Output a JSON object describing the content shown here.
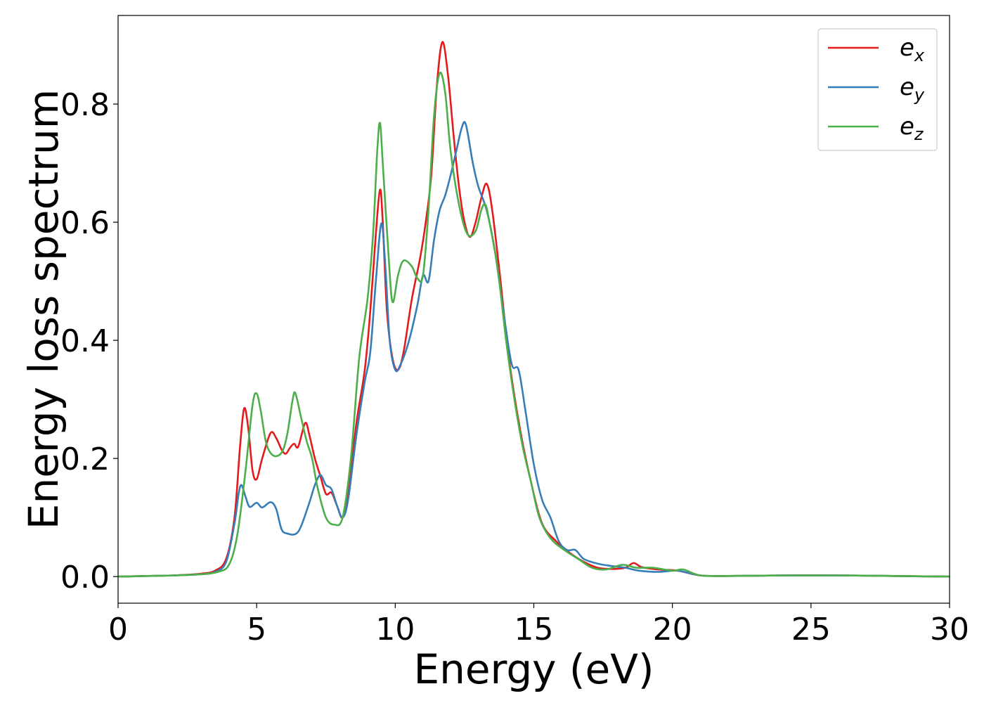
{
  "chart_data": {
    "type": "line",
    "xlabel": "Energy (eV)",
    "ylabel": "Energy loss spectrum",
    "xlim": [
      0,
      30
    ],
    "ylim": [
      -0.045,
      0.95
    ],
    "xticks": [
      0,
      5,
      10,
      15,
      20,
      25,
      30
    ],
    "xtick_labels": [
      "0",
      "5",
      "10",
      "15",
      "20",
      "25",
      "30"
    ],
    "yticks": [
      0.0,
      0.2,
      0.4,
      0.6,
      0.8
    ],
    "ytick_labels": [
      "0.0",
      "0.2",
      "0.4",
      "0.6",
      "0.8"
    ],
    "grid": false,
    "legend_position": "top-right",
    "series": [
      {
        "name": "e_x",
        "legend_main": "e",
        "legend_sub": "x",
        "color": "#e41a1c",
        "points": [
          [
            0,
            0
          ],
          [
            1,
            0.001
          ],
          [
            2,
            0.002
          ],
          [
            3,
            0.005
          ],
          [
            3.5,
            0.01
          ],
          [
            3.9,
            0.03
          ],
          [
            4.2,
            0.1
          ],
          [
            4.4,
            0.22
          ],
          [
            4.55,
            0.285
          ],
          [
            4.7,
            0.25
          ],
          [
            4.85,
            0.18
          ],
          [
            5.0,
            0.165
          ],
          [
            5.2,
            0.2
          ],
          [
            5.5,
            0.243
          ],
          [
            5.7,
            0.235
          ],
          [
            5.9,
            0.215
          ],
          [
            6.05,
            0.208
          ],
          [
            6.2,
            0.218
          ],
          [
            6.35,
            0.225
          ],
          [
            6.5,
            0.22
          ],
          [
            6.75,
            0.26
          ],
          [
            6.9,
            0.24
          ],
          [
            7.1,
            0.2
          ],
          [
            7.3,
            0.17
          ],
          [
            7.5,
            0.14
          ],
          [
            7.7,
            0.142
          ],
          [
            7.9,
            0.12
          ],
          [
            8.1,
            0.1
          ],
          [
            8.3,
            0.14
          ],
          [
            8.6,
            0.26
          ],
          [
            8.9,
            0.35
          ],
          [
            9.1,
            0.45
          ],
          [
            9.3,
            0.58
          ],
          [
            9.45,
            0.655
          ],
          [
            9.55,
            0.6
          ],
          [
            9.7,
            0.45
          ],
          [
            9.9,
            0.37
          ],
          [
            10.1,
            0.35
          ],
          [
            10.3,
            0.38
          ],
          [
            10.6,
            0.47
          ],
          [
            10.9,
            0.54
          ],
          [
            11.1,
            0.6
          ],
          [
            11.3,
            0.68
          ],
          [
            11.5,
            0.83
          ],
          [
            11.7,
            0.905
          ],
          [
            11.9,
            0.85
          ],
          [
            12.1,
            0.75
          ],
          [
            12.3,
            0.66
          ],
          [
            12.5,
            0.6
          ],
          [
            12.7,
            0.575
          ],
          [
            12.9,
            0.6
          ],
          [
            13.1,
            0.64
          ],
          [
            13.3,
            0.665
          ],
          [
            13.5,
            0.62
          ],
          [
            13.8,
            0.5
          ],
          [
            14.1,
            0.37
          ],
          [
            14.5,
            0.25
          ],
          [
            14.9,
            0.16
          ],
          [
            15.3,
            0.09
          ],
          [
            15.8,
            0.06
          ],
          [
            16.3,
            0.04
          ],
          [
            16.8,
            0.025
          ],
          [
            17.3,
            0.015
          ],
          [
            17.8,
            0.013
          ],
          [
            18.3,
            0.015
          ],
          [
            18.6,
            0.023
          ],
          [
            18.9,
            0.016
          ],
          [
            19.5,
            0.012
          ],
          [
            20.2,
            0.01
          ],
          [
            21,
            0.002
          ],
          [
            22,
            0.001
          ],
          [
            24,
            0.002
          ],
          [
            26,
            0.002
          ],
          [
            28,
            0.001
          ],
          [
            30,
            0.0
          ]
        ]
      },
      {
        "name": "e_y",
        "legend_main": "e",
        "legend_sub": "y",
        "color": "#377eb8",
        "points": [
          [
            0,
            0
          ],
          [
            1,
            0.001
          ],
          [
            2,
            0.002
          ],
          [
            3,
            0.004
          ],
          [
            3.5,
            0.008
          ],
          [
            3.9,
            0.025
          ],
          [
            4.2,
            0.09
          ],
          [
            4.35,
            0.14
          ],
          [
            4.45,
            0.155
          ],
          [
            4.6,
            0.135
          ],
          [
            4.75,
            0.118
          ],
          [
            5.0,
            0.125
          ],
          [
            5.2,
            0.117
          ],
          [
            5.5,
            0.126
          ],
          [
            5.7,
            0.115
          ],
          [
            5.9,
            0.08
          ],
          [
            6.1,
            0.073
          ],
          [
            6.4,
            0.072
          ],
          [
            6.6,
            0.085
          ],
          [
            6.9,
            0.125
          ],
          [
            7.1,
            0.155
          ],
          [
            7.3,
            0.172
          ],
          [
            7.5,
            0.155
          ],
          [
            7.7,
            0.148
          ],
          [
            7.9,
            0.12
          ],
          [
            8.1,
            0.1
          ],
          [
            8.3,
            0.13
          ],
          [
            8.6,
            0.24
          ],
          [
            8.9,
            0.33
          ],
          [
            9.1,
            0.38
          ],
          [
            9.3,
            0.5
          ],
          [
            9.5,
            0.598
          ],
          [
            9.65,
            0.52
          ],
          [
            9.8,
            0.4
          ],
          [
            10.0,
            0.35
          ],
          [
            10.2,
            0.36
          ],
          [
            10.5,
            0.4
          ],
          [
            10.8,
            0.46
          ],
          [
            11.0,
            0.51
          ],
          [
            11.2,
            0.5
          ],
          [
            11.4,
            0.57
          ],
          [
            11.6,
            0.62
          ],
          [
            11.8,
            0.645
          ],
          [
            12.0,
            0.68
          ],
          [
            12.2,
            0.72
          ],
          [
            12.4,
            0.76
          ],
          [
            12.55,
            0.765
          ],
          [
            12.8,
            0.7
          ],
          [
            13.0,
            0.66
          ],
          [
            13.3,
            0.62
          ],
          [
            13.6,
            0.55
          ],
          [
            13.9,
            0.45
          ],
          [
            14.2,
            0.36
          ],
          [
            14.45,
            0.35
          ],
          [
            14.7,
            0.28
          ],
          [
            15.0,
            0.19
          ],
          [
            15.3,
            0.13
          ],
          [
            15.6,
            0.1
          ],
          [
            15.9,
            0.06
          ],
          [
            16.2,
            0.045
          ],
          [
            16.5,
            0.045
          ],
          [
            16.8,
            0.03
          ],
          [
            17.3,
            0.022
          ],
          [
            17.8,
            0.018
          ],
          [
            18.3,
            0.015
          ],
          [
            18.8,
            0.01
          ],
          [
            19.5,
            0.008
          ],
          [
            20.2,
            0.01
          ],
          [
            21,
            0.002
          ],
          [
            22,
            0.001
          ],
          [
            24,
            0.002
          ],
          [
            26,
            0.002
          ],
          [
            28,
            0.001
          ],
          [
            30,
            0.0
          ]
        ]
      },
      {
        "name": "e_z",
        "legend_main": "e",
        "legend_sub": "z",
        "color": "#4daf4a",
        "points": [
          [
            0,
            0
          ],
          [
            1,
            0.001
          ],
          [
            2,
            0.002
          ],
          [
            3,
            0.004
          ],
          [
            3.6,
            0.008
          ],
          [
            4.0,
            0.02
          ],
          [
            4.3,
            0.07
          ],
          [
            4.6,
            0.18
          ],
          [
            4.85,
            0.29
          ],
          [
            5.0,
            0.31
          ],
          [
            5.15,
            0.28
          ],
          [
            5.35,
            0.225
          ],
          [
            5.6,
            0.205
          ],
          [
            5.9,
            0.21
          ],
          [
            6.1,
            0.24
          ],
          [
            6.3,
            0.3
          ],
          [
            6.4,
            0.31
          ],
          [
            6.6,
            0.27
          ],
          [
            6.8,
            0.23
          ],
          [
            7.0,
            0.2
          ],
          [
            7.2,
            0.15
          ],
          [
            7.5,
            0.1
          ],
          [
            7.8,
            0.088
          ],
          [
            8.1,
            0.1
          ],
          [
            8.4,
            0.2
          ],
          [
            8.7,
            0.37
          ],
          [
            9.0,
            0.47
          ],
          [
            9.2,
            0.58
          ],
          [
            9.35,
            0.72
          ],
          [
            9.45,
            0.768
          ],
          [
            9.55,
            0.7
          ],
          [
            9.75,
            0.55
          ],
          [
            9.9,
            0.465
          ],
          [
            10.1,
            0.51
          ],
          [
            10.3,
            0.535
          ],
          [
            10.6,
            0.525
          ],
          [
            10.8,
            0.505
          ],
          [
            11.0,
            0.51
          ],
          [
            11.2,
            0.62
          ],
          [
            11.4,
            0.78
          ],
          [
            11.6,
            0.852
          ],
          [
            11.8,
            0.82
          ],
          [
            12.0,
            0.72
          ],
          [
            12.3,
            0.63
          ],
          [
            12.6,
            0.58
          ],
          [
            12.9,
            0.585
          ],
          [
            13.1,
            0.62
          ],
          [
            13.25,
            0.63
          ],
          [
            13.4,
            0.6
          ],
          [
            13.7,
            0.52
          ],
          [
            14.0,
            0.4
          ],
          [
            14.3,
            0.3
          ],
          [
            14.6,
            0.22
          ],
          [
            14.9,
            0.16
          ],
          [
            15.2,
            0.1
          ],
          [
            15.6,
            0.065
          ],
          [
            16.1,
            0.045
          ],
          [
            16.6,
            0.03
          ],
          [
            17.1,
            0.015
          ],
          [
            17.6,
            0.012
          ],
          [
            18.2,
            0.02
          ],
          [
            18.7,
            0.015
          ],
          [
            19.3,
            0.015
          ],
          [
            20.0,
            0.01
          ],
          [
            20.4,
            0.012
          ],
          [
            21,
            0.002
          ],
          [
            22,
            0.001
          ],
          [
            24,
            0.002
          ],
          [
            26,
            0.002
          ],
          [
            28,
            0.001
          ],
          [
            30,
            0.0
          ]
        ]
      }
    ]
  }
}
